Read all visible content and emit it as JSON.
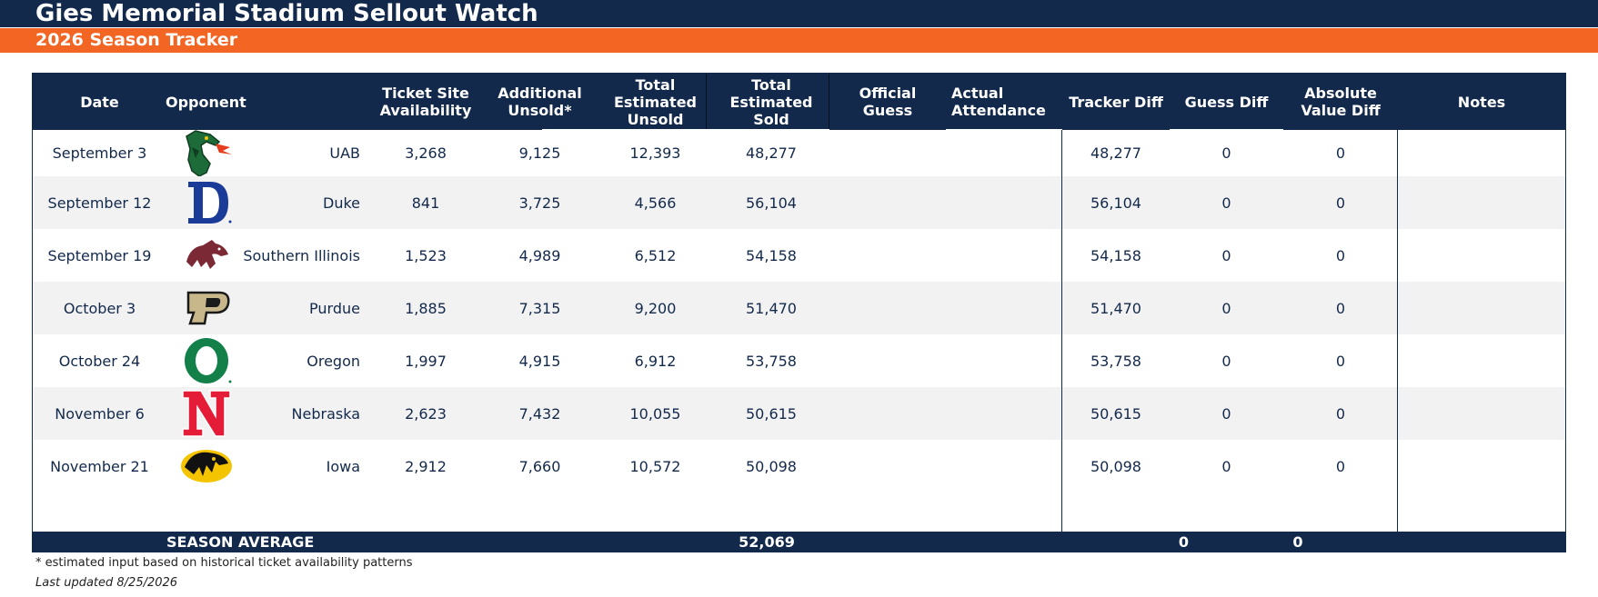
{
  "header": {
    "title": "Gies Memorial Stadium Sellout Watch",
    "subtitle": "2026 Season Tracker"
  },
  "table": {
    "columns": {
      "date": "Date",
      "opponent": "Opponent",
      "ticket_site": "Ticket Site\nAvailability",
      "additional_unsold": "Additional\nUnsold*",
      "total_est_unsold": "Total\nEstimated\nUnsold",
      "total_est_sold": "Total\nEstimated\nSold",
      "official_guess": "Official\nGuess",
      "actual_attendance": "Actual\nAttendance",
      "tracker_diff": "Tracker Diff",
      "guess_diff": "Guess Diff",
      "abs_value_diff": "Absolute\nValue Diff",
      "notes": "Notes"
    },
    "rows": [
      {
        "date": "September 3",
        "logo": "uab-dragon-logo",
        "opponent": "UAB",
        "ticket_site": "3,268",
        "additional_unsold": "9,125",
        "total_est_unsold": "12,393",
        "total_est_sold": "48,277",
        "official_guess": "",
        "actual_attendance": "",
        "tracker_diff": "48,277",
        "guess_diff": "0",
        "abs_value_diff": "0",
        "notes": ""
      },
      {
        "date": "September 12",
        "logo": "duke-d-logo",
        "opponent": "Duke",
        "ticket_site": "841",
        "additional_unsold": "3,725",
        "total_est_unsold": "4,566",
        "total_est_sold": "56,104",
        "official_guess": "",
        "actual_attendance": "",
        "tracker_diff": "56,104",
        "guess_diff": "0",
        "abs_value_diff": "0",
        "notes": ""
      },
      {
        "date": "September 19",
        "logo": "southern-illinois-saluki-logo",
        "opponent": "Southern Illinois",
        "ticket_site": "1,523",
        "additional_unsold": "4,989",
        "total_est_unsold": "6,512",
        "total_est_sold": "54,158",
        "official_guess": "",
        "actual_attendance": "",
        "tracker_diff": "54,158",
        "guess_diff": "0",
        "abs_value_diff": "0",
        "notes": ""
      },
      {
        "date": "October 3",
        "logo": "purdue-p-logo",
        "opponent": "Purdue",
        "ticket_site": "1,885",
        "additional_unsold": "7,315",
        "total_est_unsold": "9,200",
        "total_est_sold": "51,470",
        "official_guess": "",
        "actual_attendance": "",
        "tracker_diff": "51,470",
        "guess_diff": "0",
        "abs_value_diff": "0",
        "notes": ""
      },
      {
        "date": "October 24",
        "logo": "oregon-o-logo",
        "opponent": "Oregon",
        "ticket_site": "1,997",
        "additional_unsold": "4,915",
        "total_est_unsold": "6,912",
        "total_est_sold": "53,758",
        "official_guess": "",
        "actual_attendance": "",
        "tracker_diff": "53,758",
        "guess_diff": "0",
        "abs_value_diff": "0",
        "notes": ""
      },
      {
        "date": "November 6",
        "logo": "nebraska-n-logo",
        "opponent": "Nebraska",
        "ticket_site": "2,623",
        "additional_unsold": "7,432",
        "total_est_unsold": "10,055",
        "total_est_sold": "50,615",
        "official_guess": "",
        "actual_attendance": "",
        "tracker_diff": "50,615",
        "guess_diff": "0",
        "abs_value_diff": "0",
        "notes": ""
      },
      {
        "date": "November 21",
        "logo": "iowa-hawkeye-logo",
        "opponent": "Iowa",
        "ticket_site": "2,912",
        "additional_unsold": "7,660",
        "total_est_unsold": "10,572",
        "total_est_sold": "50,098",
        "official_guess": "",
        "actual_attendance": "",
        "tracker_diff": "50,098",
        "guess_diff": "0",
        "abs_value_diff": "0",
        "notes": ""
      }
    ],
    "footer": {
      "label": "SEASON AVERAGE",
      "total_est_sold": "52,069",
      "guess_diff": "0",
      "abs_value_diff": "0"
    }
  },
  "notes": {
    "footnote": "* estimated input based on historical ticket availability patterns",
    "last_updated": "Last updated 8/25/2026"
  },
  "colors": {
    "navy": "#13294b",
    "orange": "#f26522",
    "row_alt": "#f2f2f2"
  }
}
